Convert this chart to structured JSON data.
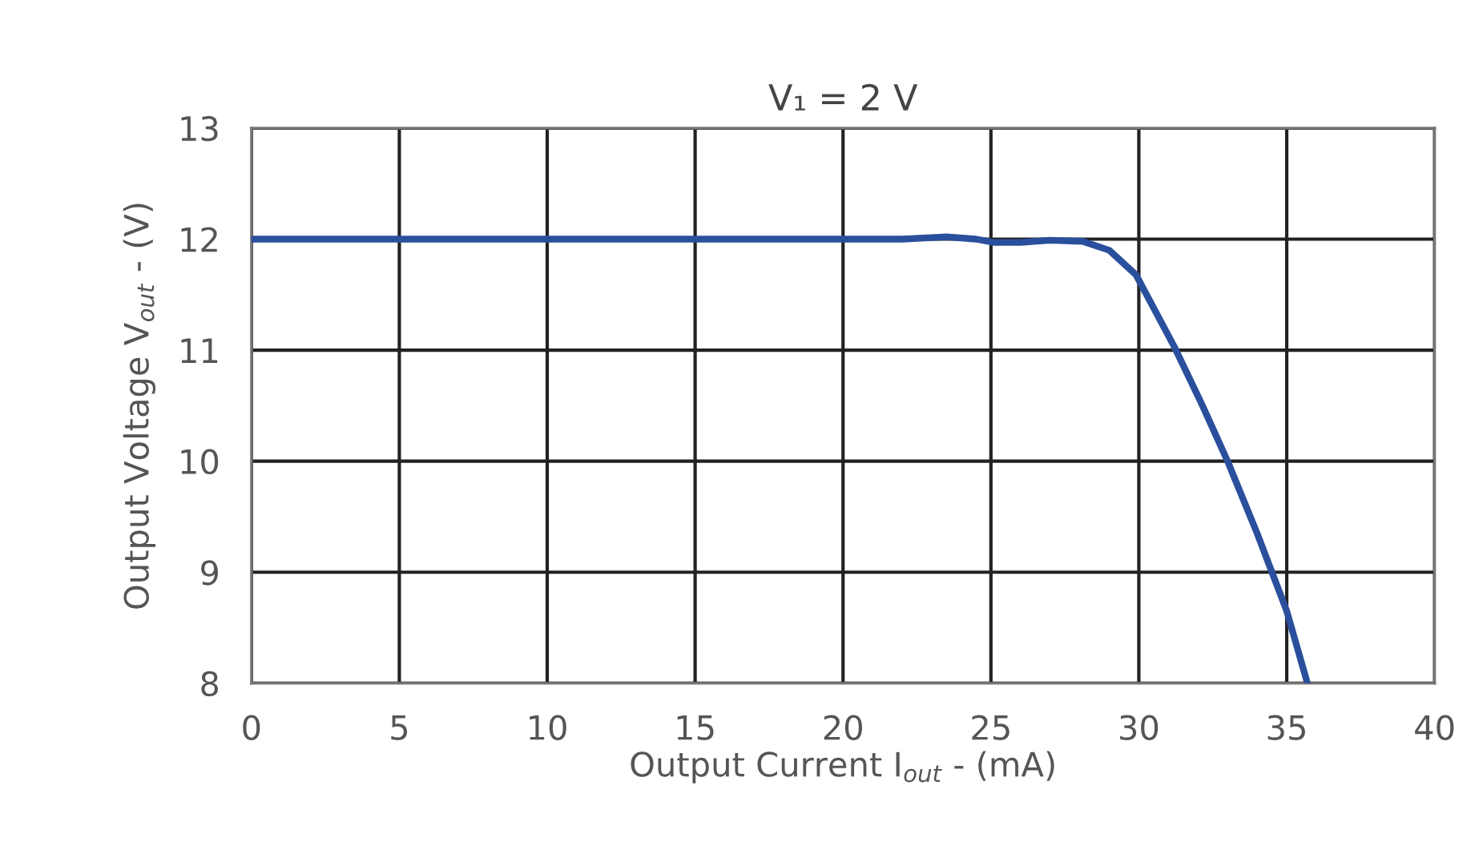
{
  "chart_data": {
    "type": "line",
    "title": "V₁ = 2 V",
    "xlabel": "Output Current I$_{out}$ - (mA)",
    "ylabel": "Output Voltage V$_{out}$ - (V)",
    "xlim": [
      0,
      40
    ],
    "xticks": [
      0,
      5,
      10,
      15,
      20,
      25,
      30,
      35,
      40
    ],
    "ylim": [
      8,
      13
    ],
    "yticks": [
      8,
      9,
      10,
      11,
      12,
      13
    ],
    "grid": true,
    "marker": "none",
    "line_style": "solid",
    "series": [
      {
        "color": "#2a4f9c",
        "x": [
          0,
          5,
          10,
          15,
          20,
          22,
          23.5,
          24.5,
          25.1,
          26,
          27,
          28.1,
          29.0,
          29.9,
          31.2,
          32.1,
          33.0,
          34.0,
          35.0,
          35.7
        ],
        "values": [
          12,
          12,
          12,
          12,
          12,
          12,
          12.02,
          12.0,
          11.97,
          11.97,
          11.99,
          11.98,
          11.9,
          11.68,
          11.03,
          10.53,
          10.0,
          9.35,
          8.65,
          8.0
        ]
      }
    ]
  }
}
